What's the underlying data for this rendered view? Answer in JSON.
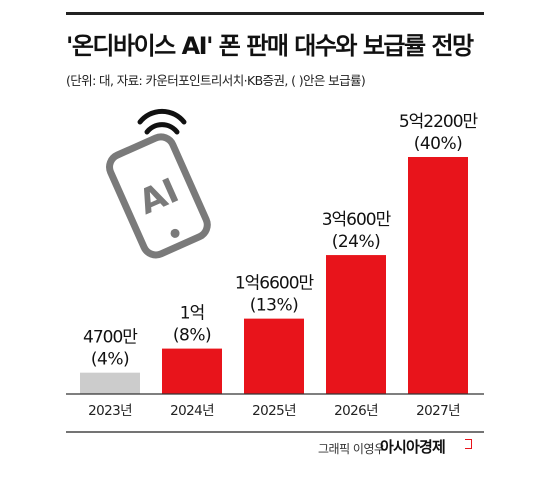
{
  "header": {
    "title": "'온디바이스 AI' 폰 판매 대수와 보급률 전망",
    "subtitle": "(단위: 대, 자료: 카운터포인트리서치·KB증권, ( )안은 보급률)"
  },
  "icon": {
    "name": "ai-smartphone-wifi-icon",
    "text": "AI"
  },
  "chart_data": {
    "type": "bar",
    "categories": [
      "2023년",
      "2024년",
      "2025년",
      "2026년",
      "2027년"
    ],
    "values": [
      47000000,
      100000000,
      166000000,
      306000000,
      522000000
    ],
    "value_labels": [
      "4700만",
      "1억",
      "1억6600만",
      "3억600만",
      "5억2200만"
    ],
    "rate_labels": [
      "(4%)",
      "(8%)",
      "(13%)",
      "(24%)",
      "(40%)"
    ],
    "colors": [
      "#cccccc",
      "#e8141b",
      "#e8141b",
      "#e8141b",
      "#e8141b"
    ],
    "ylim": [
      0,
      522000000
    ],
    "grid": false,
    "title": "'온디바이스 AI' 폰 판매 대수와 보급률 전망"
  },
  "footer": {
    "credit": "그래픽 이영우",
    "brand": "아시아경제"
  }
}
